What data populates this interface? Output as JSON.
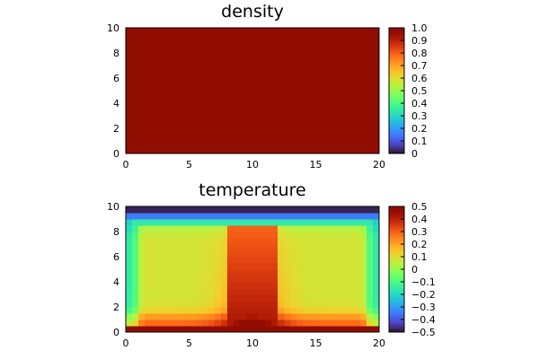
{
  "chart_data": [
    {
      "type": "heatmap",
      "title": "density",
      "xlim": [
        0,
        20
      ],
      "ylim": [
        0,
        10
      ],
      "x_ticks": [
        "0",
        "5",
        "10",
        "15",
        "20"
      ],
      "y_ticks": [
        "0",
        "2",
        "4",
        "6",
        "8",
        "10"
      ],
      "colorbar": {
        "colormap": "turbo",
        "range": [
          0,
          1
        ],
        "ticks": [
          "0",
          "0.1",
          "0.2",
          "0.3",
          "0.4",
          "0.5",
          "0.6",
          "0.7",
          "0.8",
          "0.9",
          "1.0"
        ]
      },
      "field": {
        "description_value": 1.0,
        "uniform": true
      },
      "grid": false
    },
    {
      "type": "heatmap",
      "title": "temperature",
      "xlim": [
        0,
        20
      ],
      "ylim": [
        0,
        10
      ],
      "x_ticks": [
        "0",
        "5",
        "10",
        "15",
        "20"
      ],
      "y_ticks": [
        "0",
        "2",
        "4",
        "6",
        "8",
        "10"
      ],
      "colorbar": {
        "colormap": "turbo",
        "range": [
          -0.5,
          0.5
        ],
        "ticks": [
          "0.5",
          "0.4",
          "0.3",
          "0.2",
          "0.1",
          "0",
          "−0.1",
          "−0.2",
          "−0.3",
          "−0.4",
          "−0.5"
        ]
      },
      "field": {
        "nx": 40,
        "ny": 20,
        "top_value": -0.5,
        "bottom_value": 0.5,
        "plume_center_x": 10,
        "profile": "rayleigh-benard-plume"
      },
      "grid": false
    }
  ]
}
